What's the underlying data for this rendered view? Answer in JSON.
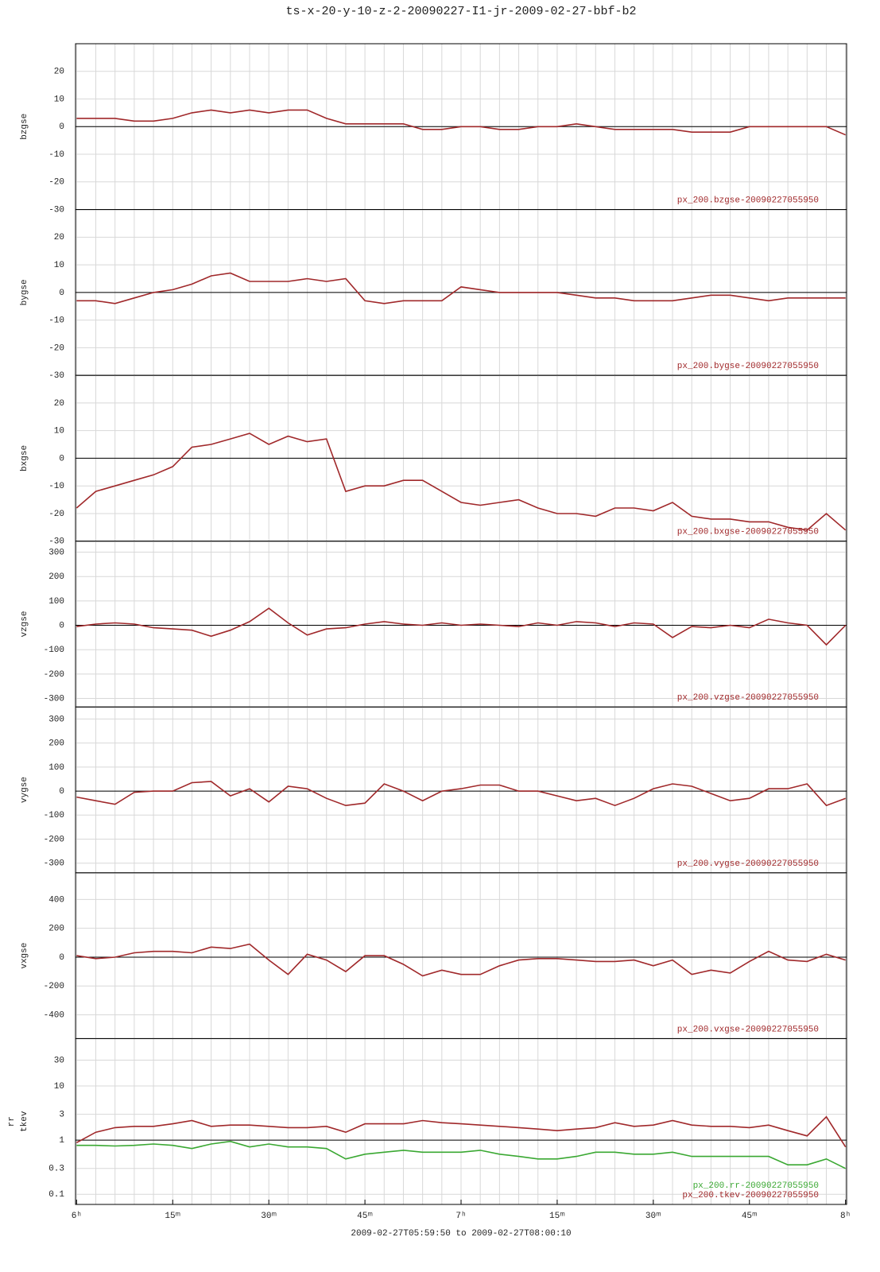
{
  "chart_data": [
    {
      "type": "line",
      "title": "ts-x-20-y-10-z-2-20090227-I1-jr-2009-02-27-bbf-b2",
      "ylabel": "bzgse",
      "xlim": [
        -0.1667,
        120.1667
      ],
      "xgrid": [
        0,
        3,
        6,
        9,
        12,
        15,
        18,
        21,
        24,
        27,
        30,
        33,
        36,
        39,
        42,
        45,
        48,
        51,
        54,
        57,
        60,
        63,
        66,
        69,
        72,
        75,
        78,
        81,
        84,
        87,
        90,
        93,
        96,
        99,
        102,
        105,
        108,
        111,
        114,
        117,
        120
      ],
      "ylim": [
        -30,
        30
      ],
      "yticks": [
        -30,
        -20,
        -10,
        0,
        10,
        20
      ],
      "hline": 0,
      "x": [
        0,
        3,
        6,
        9,
        12,
        15,
        18,
        21,
        24,
        27,
        30,
        33,
        36,
        39,
        42,
        45,
        48,
        51,
        54,
        57,
        60,
        63,
        66,
        69,
        72,
        75,
        78,
        81,
        84,
        87,
        90,
        93,
        96,
        99,
        102,
        105,
        108,
        111,
        114,
        117,
        120
      ],
      "series": [
        {
          "name": "px_200.bzgse-20090227055950",
          "color": "#a0282a",
          "values": [
            3,
            3,
            3,
            2,
            2,
            3,
            5,
            6,
            5,
            6,
            5,
            6,
            6,
            3,
            1,
            1,
            1,
            1,
            -1,
            -1,
            0,
            0,
            -1,
            -1,
            0,
            0,
            1,
            0,
            -1,
            -1,
            -1,
            -1,
            -2,
            -2,
            -2,
            0,
            0,
            0,
            0,
            0,
            -3
          ]
        }
      ]
    },
    {
      "type": "line",
      "ylabel": "bygse",
      "xlim": [
        -0.1667,
        120.1667
      ],
      "xgrid": [
        0,
        3,
        6,
        9,
        12,
        15,
        18,
        21,
        24,
        27,
        30,
        33,
        36,
        39,
        42,
        45,
        48,
        51,
        54,
        57,
        60,
        63,
        66,
        69,
        72,
        75,
        78,
        81,
        84,
        87,
        90,
        93,
        96,
        99,
        102,
        105,
        108,
        111,
        114,
        117,
        120
      ],
      "ylim": [
        -30,
        30
      ],
      "yticks": [
        -30,
        -20,
        -10,
        0,
        10,
        20
      ],
      "hline": 0,
      "x": [
        0,
        3,
        6,
        9,
        12,
        15,
        18,
        21,
        24,
        27,
        30,
        33,
        36,
        39,
        42,
        45,
        48,
        51,
        54,
        57,
        60,
        63,
        66,
        69,
        72,
        75,
        78,
        81,
        84,
        87,
        90,
        93,
        96,
        99,
        102,
        105,
        108,
        111,
        114,
        117,
        120
      ],
      "series": [
        {
          "name": "px_200.bygse-20090227055950",
          "color": "#a0282a",
          "values": [
            -3,
            -3,
            -4,
            -2,
            0,
            1,
            3,
            6,
            7,
            4,
            4,
            4,
            5,
            4,
            5,
            -3,
            -4,
            -3,
            -3,
            -3,
            2,
            1,
            0,
            0,
            0,
            0,
            -1,
            -2,
            -2,
            -3,
            -3,
            -3,
            -2,
            -1,
            -1,
            -2,
            -3,
            -2,
            -2,
            -2,
            -2
          ]
        }
      ]
    },
    {
      "type": "line",
      "ylabel": "bxgse",
      "xlim": [
        -0.1667,
        120.1667
      ],
      "xgrid": [
        0,
        3,
        6,
        9,
        12,
        15,
        18,
        21,
        24,
        27,
        30,
        33,
        36,
        39,
        42,
        45,
        48,
        51,
        54,
        57,
        60,
        63,
        66,
        69,
        72,
        75,
        78,
        81,
        84,
        87,
        90,
        93,
        96,
        99,
        102,
        105,
        108,
        111,
        114,
        117,
        120
      ],
      "ylim": [
        -30,
        30
      ],
      "yticks": [
        -30,
        -20,
        -10,
        0,
        10,
        20
      ],
      "hline": 0,
      "x": [
        0,
        3,
        6,
        9,
        12,
        15,
        18,
        21,
        24,
        27,
        30,
        33,
        36,
        39,
        42,
        45,
        48,
        51,
        54,
        57,
        60,
        63,
        66,
        69,
        72,
        75,
        78,
        81,
        84,
        87,
        90,
        93,
        96,
        99,
        102,
        105,
        108,
        111,
        114,
        117,
        120
      ],
      "series": [
        {
          "name": "px_200.bxgse-20090227055950",
          "color": "#a0282a",
          "values": [
            -18,
            -12,
            -10,
            -8,
            -6,
            -3,
            4,
            5,
            7,
            9,
            5,
            8,
            6,
            7,
            -12,
            -10,
            -10,
            -8,
            -8,
            -12,
            -16,
            -17,
            -16,
            -15,
            -18,
            -20,
            -20,
            -21,
            -18,
            -18,
            -19,
            -16,
            -21,
            -22,
            -22,
            -23,
            -23,
            -25,
            -26,
            -20,
            -26
          ]
        }
      ]
    },
    {
      "type": "line",
      "ylabel": "vzgse",
      "xlim": [
        -0.1667,
        120.1667
      ],
      "xgrid": [
        0,
        3,
        6,
        9,
        12,
        15,
        18,
        21,
        24,
        27,
        30,
        33,
        36,
        39,
        42,
        45,
        48,
        51,
        54,
        57,
        60,
        63,
        66,
        69,
        72,
        75,
        78,
        81,
        84,
        87,
        90,
        93,
        96,
        99,
        102,
        105,
        108,
        111,
        114,
        117,
        120
      ],
      "ylim": [
        -335,
        345
      ],
      "yticks": [
        -300,
        -200,
        -100,
        0,
        100,
        200,
        300
      ],
      "hline": 0,
      "x": [
        0,
        3,
        6,
        9,
        12,
        15,
        18,
        21,
        24,
        27,
        30,
        33,
        36,
        39,
        42,
        45,
        48,
        51,
        54,
        57,
        60,
        63,
        66,
        69,
        72,
        75,
        78,
        81,
        84,
        87,
        90,
        93,
        96,
        99,
        102,
        105,
        108,
        111,
        114,
        117,
        120
      ],
      "series": [
        {
          "name": "px_200.vzgse-20090227055950",
          "color": "#a0282a",
          "values": [
            -5,
            5,
            10,
            5,
            -10,
            -15,
            -20,
            -45,
            -20,
            15,
            70,
            10,
            -40,
            -15,
            -10,
            5,
            15,
            5,
            0,
            10,
            0,
            5,
            0,
            -5,
            10,
            0,
            15,
            10,
            -5,
            10,
            5,
            -50,
            -5,
            -10,
            0,
            -10,
            25,
            10,
            0,
            -80,
            0
          ]
        }
      ]
    },
    {
      "type": "line",
      "ylabel": "vygse",
      "xlim": [
        -0.1667,
        120.1667
      ],
      "xgrid": [
        0,
        3,
        6,
        9,
        12,
        15,
        18,
        21,
        24,
        27,
        30,
        33,
        36,
        39,
        42,
        45,
        48,
        51,
        54,
        57,
        60,
        63,
        66,
        69,
        72,
        75,
        78,
        81,
        84,
        87,
        90,
        93,
        96,
        99,
        102,
        105,
        108,
        111,
        114,
        117,
        120
      ],
      "ylim": [
        -340,
        350
      ],
      "yticks": [
        -300,
        -200,
        -100,
        0,
        100,
        200,
        300
      ],
      "hline": 0,
      "x": [
        0,
        3,
        6,
        9,
        12,
        15,
        18,
        21,
        24,
        27,
        30,
        33,
        36,
        39,
        42,
        45,
        48,
        51,
        54,
        57,
        60,
        63,
        66,
        69,
        72,
        75,
        78,
        81,
        84,
        87,
        90,
        93,
        96,
        99,
        102,
        105,
        108,
        111,
        114,
        117,
        120
      ],
      "series": [
        {
          "name": "px_200.vygse-20090227055950",
          "color": "#a0282a",
          "values": [
            -25,
            -40,
            -55,
            -5,
            0,
            0,
            35,
            40,
            -20,
            10,
            -45,
            20,
            10,
            -30,
            -60,
            -50,
            30,
            0,
            -40,
            0,
            10,
            25,
            25,
            0,
            0,
            -20,
            -40,
            -30,
            -60,
            -30,
            10,
            30,
            20,
            -10,
            -40,
            -30,
            10,
            10,
            30,
            -60,
            -30
          ]
        }
      ]
    },
    {
      "type": "line",
      "ylabel": "vxgse",
      "xlim": [
        -0.1667,
        120.1667
      ],
      "xgrid": [
        0,
        3,
        6,
        9,
        12,
        15,
        18,
        21,
        24,
        27,
        30,
        33,
        36,
        39,
        42,
        45,
        48,
        51,
        54,
        57,
        60,
        63,
        66,
        69,
        72,
        75,
        78,
        81,
        84,
        87,
        90,
        93,
        96,
        99,
        102,
        105,
        108,
        111,
        114,
        117,
        120
      ],
      "ylim": [
        -565,
        585
      ],
      "yticks": [
        -400,
        -200,
        0,
        200,
        400
      ],
      "hline": 0,
      "x": [
        0,
        3,
        6,
        9,
        12,
        15,
        18,
        21,
        24,
        27,
        30,
        33,
        36,
        39,
        42,
        45,
        48,
        51,
        54,
        57,
        60,
        63,
        66,
        69,
        72,
        75,
        78,
        81,
        84,
        87,
        90,
        93,
        96,
        99,
        102,
        105,
        108,
        111,
        114,
        117,
        120
      ],
      "series": [
        {
          "name": "px_200.vxgse-20090227055950",
          "color": "#a0282a",
          "values": [
            10,
            -10,
            0,
            30,
            40,
            40,
            30,
            70,
            60,
            90,
            -20,
            -120,
            20,
            -20,
            -100,
            10,
            10,
            -50,
            -130,
            -90,
            -120,
            -120,
            -60,
            -20,
            -10,
            -10,
            -20,
            -30,
            -30,
            -20,
            -60,
            -20,
            -120,
            -90,
            -110,
            -30,
            40,
            -20,
            -30,
            20,
            -20
          ]
        }
      ]
    },
    {
      "type": "line",
      "ylabel": [
        "rr",
        "tkev"
      ],
      "log": true,
      "xlim": [
        -0.1667,
        120.1667
      ],
      "xgrid": [
        0,
        3,
        6,
        9,
        12,
        15,
        18,
        21,
        24,
        27,
        30,
        33,
        36,
        39,
        42,
        45,
        48,
        51,
        54,
        57,
        60,
        63,
        66,
        69,
        72,
        75,
        78,
        81,
        84,
        87,
        90,
        93,
        96,
        99,
        102,
        105,
        108,
        111,
        114,
        117,
        120
      ],
      "xticks": [
        {
          "value": 0,
          "label": "6ʰ"
        },
        {
          "value": 15,
          "label": "15ᵐ"
        },
        {
          "value": 30,
          "label": "30ᵐ"
        },
        {
          "value": 45,
          "label": "45ᵐ"
        },
        {
          "value": 60,
          "label": "7ʰ"
        },
        {
          "value": 75,
          "label": "15ᵐ"
        },
        {
          "value": 90,
          "label": "30ᵐ"
        },
        {
          "value": 105,
          "label": "45ᵐ"
        },
        {
          "value": 120,
          "label": "8ʰ"
        }
      ],
      "xlabel": "2009-02-27T05:59:50 to 2009-02-27T08:00:10",
      "ylim": [
        0.065,
        75
      ],
      "yticks": [
        0.1,
        0.3,
        1,
        3,
        10,
        30
      ],
      "hline": 1,
      "x": [
        0,
        3,
        6,
        9,
        12,
        15,
        18,
        21,
        24,
        27,
        30,
        33,
        36,
        39,
        42,
        45,
        48,
        51,
        54,
        57,
        60,
        63,
        66,
        69,
        72,
        75,
        78,
        81,
        84,
        87,
        90,
        93,
        96,
        99,
        102,
        105,
        108,
        111,
        114,
        117,
        120
      ],
      "series": [
        {
          "name": "px_200.rr-20090227055950",
          "color": "#3aa832",
          "values": [
            0.8,
            0.8,
            0.78,
            0.8,
            0.85,
            0.8,
            0.7,
            0.85,
            0.95,
            0.75,
            0.85,
            0.75,
            0.75,
            0.7,
            0.45,
            0.55,
            0.6,
            0.65,
            0.6,
            0.6,
            0.6,
            0.65,
            0.55,
            0.5,
            0.45,
            0.45,
            0.5,
            0.6,
            0.6,
            0.55,
            0.55,
            0.6,
            0.5,
            0.5,
            0.5,
            0.5,
            0.5,
            0.35,
            0.35,
            0.45,
            0.3
          ]
        },
        {
          "name": "px_200.tkev-20090227055950",
          "color": "#a0282a",
          "values": [
            0.9,
            1.4,
            1.7,
            1.8,
            1.8,
            2.0,
            2.3,
            1.8,
            1.9,
            1.9,
            1.8,
            1.7,
            1.7,
            1.8,
            1.4,
            2.0,
            2.0,
            2.0,
            2.3,
            2.1,
            2.0,
            1.9,
            1.8,
            1.7,
            1.6,
            1.5,
            1.6,
            1.7,
            2.1,
            1.8,
            1.9,
            2.3,
            1.9,
            1.8,
            1.8,
            1.7,
            1.9,
            1.5,
            1.2,
            2.7,
            0.75
          ]
        }
      ]
    }
  ]
}
